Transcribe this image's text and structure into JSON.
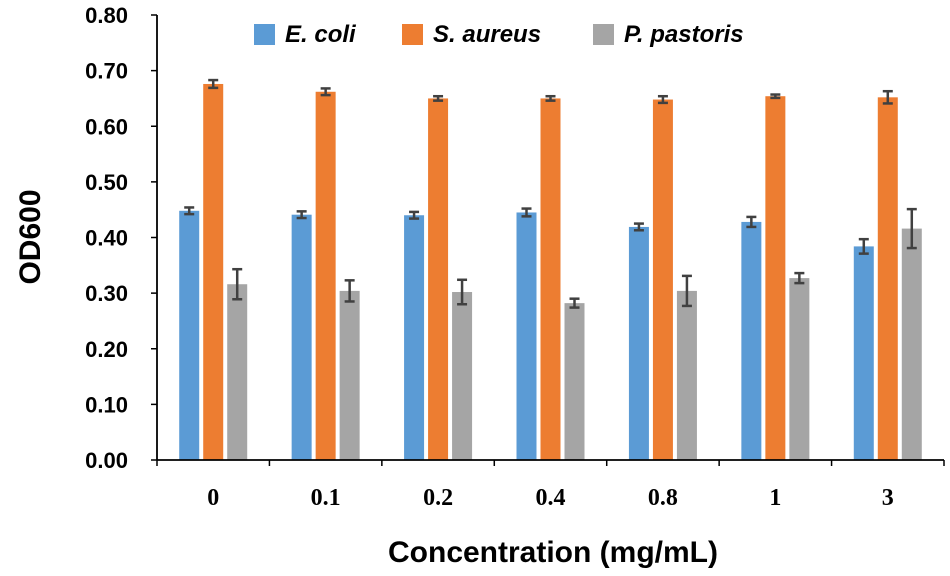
{
  "chart_data": {
    "type": "bar",
    "title": "",
    "xlabel": "Concentration (mg/mL)",
    "ylabel": "OD600",
    "ylim": [
      0,
      0.8
    ],
    "yticks": [
      "0.00",
      "0.10",
      "0.20",
      "0.30",
      "0.40",
      "0.50",
      "0.60",
      "0.70",
      "0.80"
    ],
    "categories": [
      "0",
      "0.1",
      "0.2",
      "0.4",
      "0.8",
      "1",
      "3"
    ],
    "legend_position": "top",
    "series": [
      {
        "name": "E. coli",
        "color": "#5b9bd5",
        "values": [
          0.448,
          0.441,
          0.44,
          0.445,
          0.419,
          0.428,
          0.384
        ],
        "errors": [
          0.006,
          0.006,
          0.006,
          0.007,
          0.006,
          0.009,
          0.013
        ]
      },
      {
        "name": "S. aureus",
        "color": "#ed7d31",
        "values": [
          0.676,
          0.662,
          0.65,
          0.65,
          0.648,
          0.654,
          0.652
        ],
        "errors": [
          0.007,
          0.006,
          0.004,
          0.004,
          0.006,
          0.003,
          0.011
        ]
      },
      {
        "name": "P. pastoris",
        "color": "#a5a5a5",
        "values": [
          0.316,
          0.304,
          0.302,
          0.282,
          0.304,
          0.327,
          0.416
        ],
        "errors": [
          0.027,
          0.019,
          0.022,
          0.008,
          0.027,
          0.009,
          0.035
        ]
      }
    ]
  }
}
